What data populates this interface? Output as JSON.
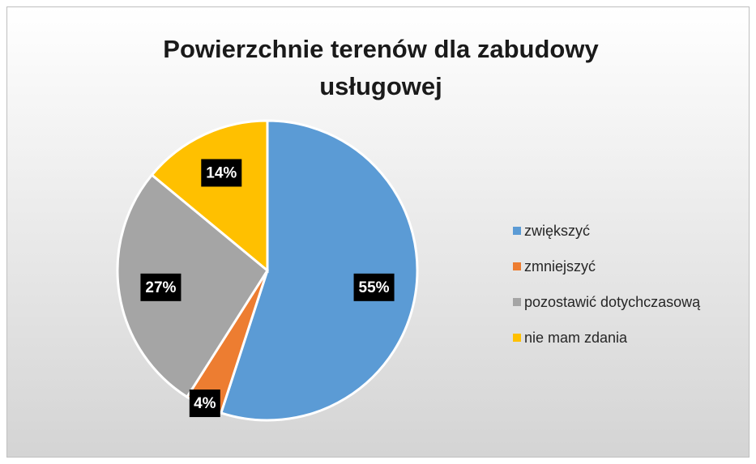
{
  "chart_data": {
    "type": "pie",
    "title": "Powierzchnie terenów dla zabudowy usługowej",
    "categories": [
      "zwiększyć",
      "zmniejszyć",
      "pozostawić dotychczasową",
      "nie mam zdania"
    ],
    "values": [
      55,
      4,
      27,
      14
    ],
    "value_labels": [
      "55%",
      "4%",
      "27%",
      "14%"
    ],
    "colors": [
      "#5b9bd5",
      "#ed7d31",
      "#a5a5a5",
      "#ffc000"
    ],
    "legend": "right"
  }
}
